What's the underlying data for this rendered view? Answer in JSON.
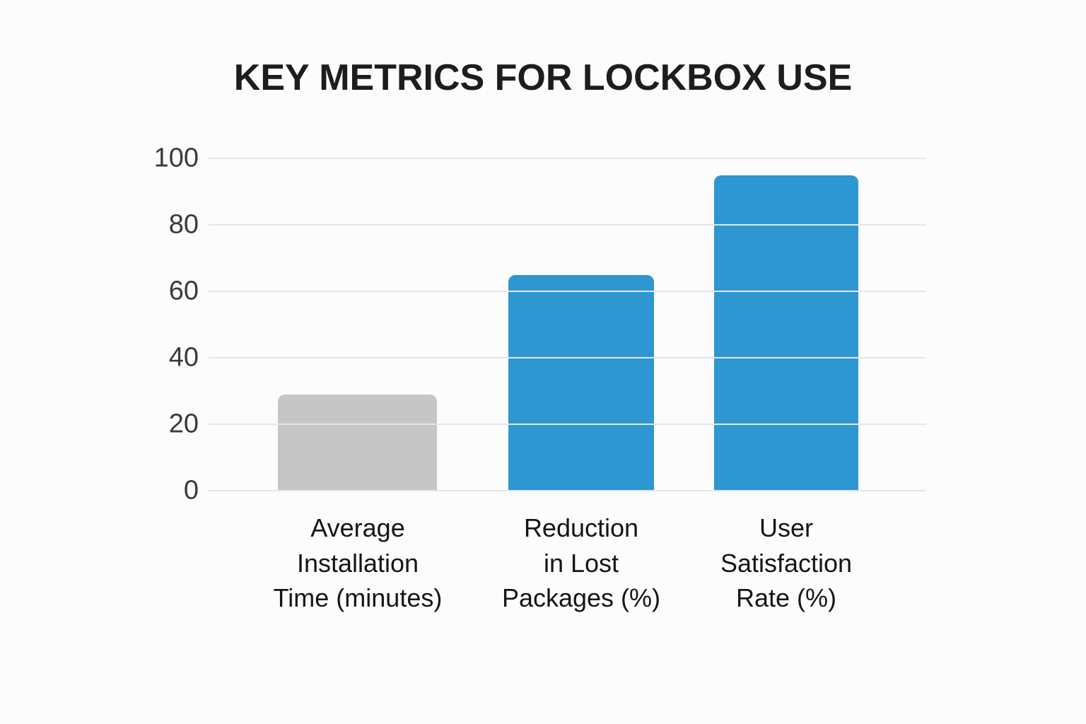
{
  "title": "KEY METRICS FOR LOCKBOX USE",
  "chart_data": {
    "type": "bar",
    "title": "KEY METRICS FOR LOCKBOX USE",
    "categories": [
      "Average\nInstallation\nTime (minutes)",
      "Reduction\nin Lost\nPackages (%)",
      "User\nSatisfaction\nRate (%)"
    ],
    "values": [
      29,
      65,
      95
    ],
    "bar_colors": [
      "#c6c6c6",
      "#2e96d1",
      "#2e96d1"
    ],
    "xlabel": "",
    "ylabel": "",
    "ylim": [
      0,
      100
    ],
    "yticks": [
      0,
      20,
      40,
      60,
      80,
      100
    ],
    "grid": true,
    "legend_position": "none"
  },
  "colors": {
    "background": "#fcfcfc",
    "gridline": "#e6e6e6",
    "title_text": "#1d1d1f",
    "tick_text": "#3a3a3c",
    "category_text": "#151517",
    "bar_gray": "#c6c6c6",
    "bar_blue": "#2e96d1"
  }
}
